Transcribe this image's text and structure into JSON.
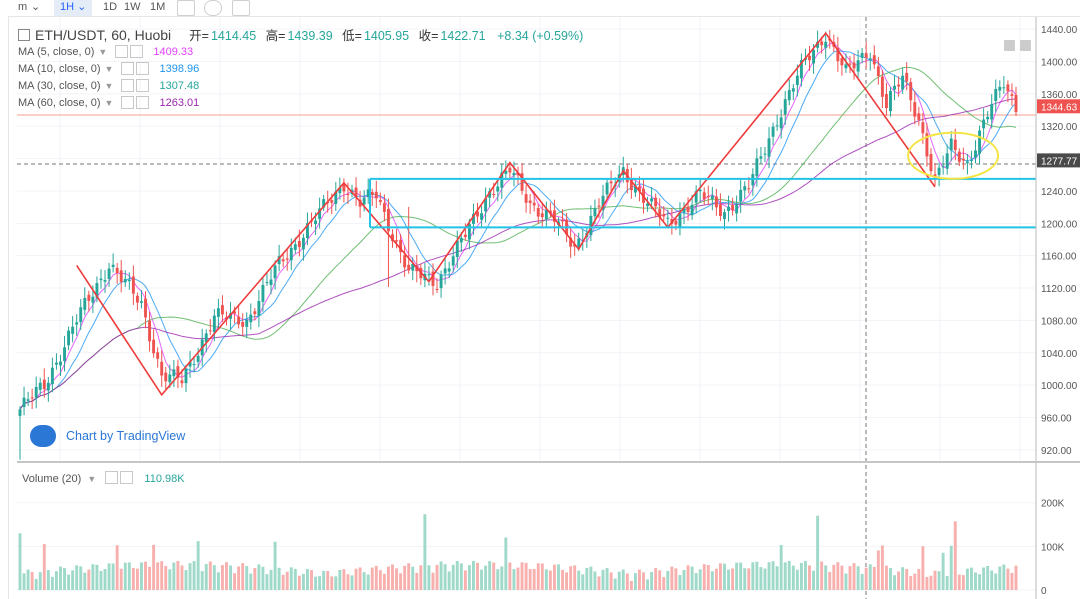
{
  "toolbar": {
    "interval_m": "m",
    "interval_1h": "1H",
    "interval_1d": "1D",
    "interval_1w": "1W",
    "interval_1m": "1M",
    "caret": "⌄"
  },
  "symbol": {
    "title": "ETH/USDT, 60, Huobi",
    "open_label": "开=",
    "open": "1414.45",
    "high_label": "高=",
    "high": "1439.39",
    "low_label": "低=",
    "low": "1405.95",
    "close_label": "收=",
    "close": "1422.71",
    "change": "+8.34 (+0.59%)"
  },
  "indicators": [
    {
      "label": "MA (5, close, 0)",
      "value": "1409.33",
      "color": "#e040fb"
    },
    {
      "label": "MA (10, close, 0)",
      "value": "1398.96",
      "color": "#2196f3"
    },
    {
      "label": "MA (30, close, 0)",
      "value": "1307.48",
      "color": "#4caf50"
    },
    {
      "label": "MA (60, close, 0)",
      "value": "1263.01",
      "color": "#9c27b0"
    }
  ],
  "watermark": "Chart by TradingView",
  "volume": {
    "label": "Volume (20)",
    "value": "110.98K"
  },
  "colors": {
    "up": "#26a69a",
    "down": "#ef5350",
    "box": "#22c3e6",
    "ellipse": "#f4e542",
    "zigzag": "#ef3b3b",
    "axis_text": "#555555"
  },
  "chart_data": {
    "type": "candlestick",
    "price_axis": {
      "ticks": [
        "1440.00",
        "1400.00",
        "1360.00",
        "1320.00",
        "1280.00",
        "1240.00",
        "1200.00",
        "1160.00",
        "1120.00",
        "1080.00",
        "1040.00",
        "1000.00",
        "960.00",
        "920.00"
      ],
      "range": [
        905,
        1455
      ]
    },
    "price_labels": {
      "last": "1344.63",
      "crosshair": "1277.77"
    },
    "volume_axis": {
      "ticks": [
        "200K",
        "100K",
        "0"
      ],
      "range": [
        0,
        220000
      ]
    },
    "range_box": {
      "top": 1255,
      "bottom": 1195
    },
    "key_points": [
      {
        "bar": 0,
        "price": 970
      },
      {
        "bar": 6,
        "price": 1000
      },
      {
        "bar": 14,
        "price": 1080
      },
      {
        "bar": 22,
        "price": 1150
      },
      {
        "bar": 30,
        "price": 1100
      },
      {
        "bar": 35,
        "price": 1012
      },
      {
        "bar": 40,
        "price": 1005
      },
      {
        "bar": 48,
        "price": 1085
      },
      {
        "bar": 56,
        "price": 1080
      },
      {
        "bar": 64,
        "price": 1150
      },
      {
        "bar": 72,
        "price": 1200
      },
      {
        "bar": 80,
        "price": 1250
      },
      {
        "bar": 84,
        "price": 1225
      },
      {
        "bar": 88,
        "price": 1235
      },
      {
        "bar": 96,
        "price": 1140
      },
      {
        "bar": 103,
        "price": 1128
      },
      {
        "bar": 110,
        "price": 1185
      },
      {
        "bar": 116,
        "price": 1240
      },
      {
        "bar": 121,
        "price": 1265
      },
      {
        "bar": 126,
        "price": 1225
      },
      {
        "bar": 132,
        "price": 1205
      },
      {
        "bar": 137,
        "price": 1170
      },
      {
        "bar": 143,
        "price": 1225
      },
      {
        "bar": 149,
        "price": 1265
      },
      {
        "bar": 155,
        "price": 1225
      },
      {
        "bar": 160,
        "price": 1200
      },
      {
        "bar": 168,
        "price": 1235
      },
      {
        "bar": 174,
        "price": 1215
      },
      {
        "bar": 180,
        "price": 1245
      },
      {
        "bar": 187,
        "price": 1330
      },
      {
        "bar": 194,
        "price": 1400
      },
      {
        "bar": 199,
        "price": 1435
      },
      {
        "bar": 204,
        "price": 1385
      },
      {
        "bar": 210,
        "price": 1415
      },
      {
        "bar": 214,
        "price": 1345
      },
      {
        "bar": 218,
        "price": 1380
      },
      {
        "bar": 222,
        "price": 1330
      },
      {
        "bar": 226,
        "price": 1250
      },
      {
        "bar": 230,
        "price": 1295
      },
      {
        "bar": 234,
        "price": 1275
      },
      {
        "bar": 240,
        "price": 1345
      },
      {
        "bar": 243,
        "price": 1375
      },
      {
        "bar": 246,
        "price": 1345
      }
    ],
    "bar_count": 247,
    "zigzag": [
      {
        "bar": 14,
        "price": 1148
      },
      {
        "bar": 35,
        "price": 988
      },
      {
        "bar": 80,
        "price": 1250
      },
      {
        "bar": 101,
        "price": 1128
      },
      {
        "bar": 121,
        "price": 1275
      },
      {
        "bar": 138,
        "price": 1168
      },
      {
        "bar": 149,
        "price": 1265
      },
      {
        "bar": 160,
        "price": 1195
      },
      {
        "bar": 199,
        "price": 1435
      },
      {
        "bar": 226,
        "price": 1245
      }
    ],
    "ellipse": {
      "bar": 227,
      "price": 1265
    }
  }
}
